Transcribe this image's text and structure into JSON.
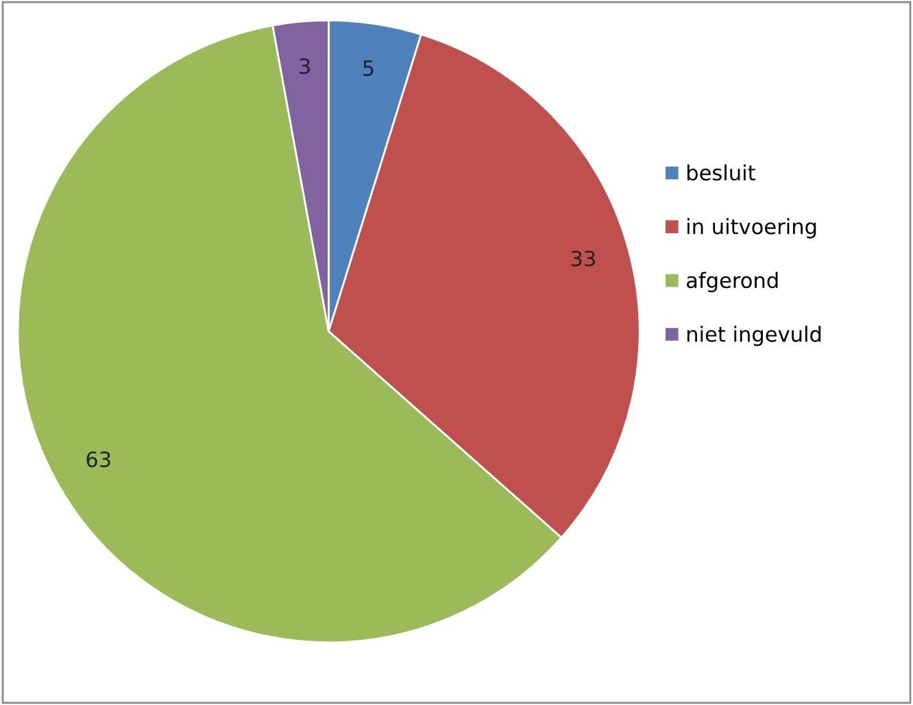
{
  "chart_data": {
    "type": "pie",
    "categories": [
      "besluit",
      "in uitvoering",
      "afgerond",
      "niet ingevuld"
    ],
    "values": [
      5,
      33,
      63,
      3
    ],
    "colors": [
      "#4f81bd",
      "#c0504d",
      "#9bbb59",
      "#8064a2"
    ],
    "data_labels": true,
    "legend": "right"
  }
}
